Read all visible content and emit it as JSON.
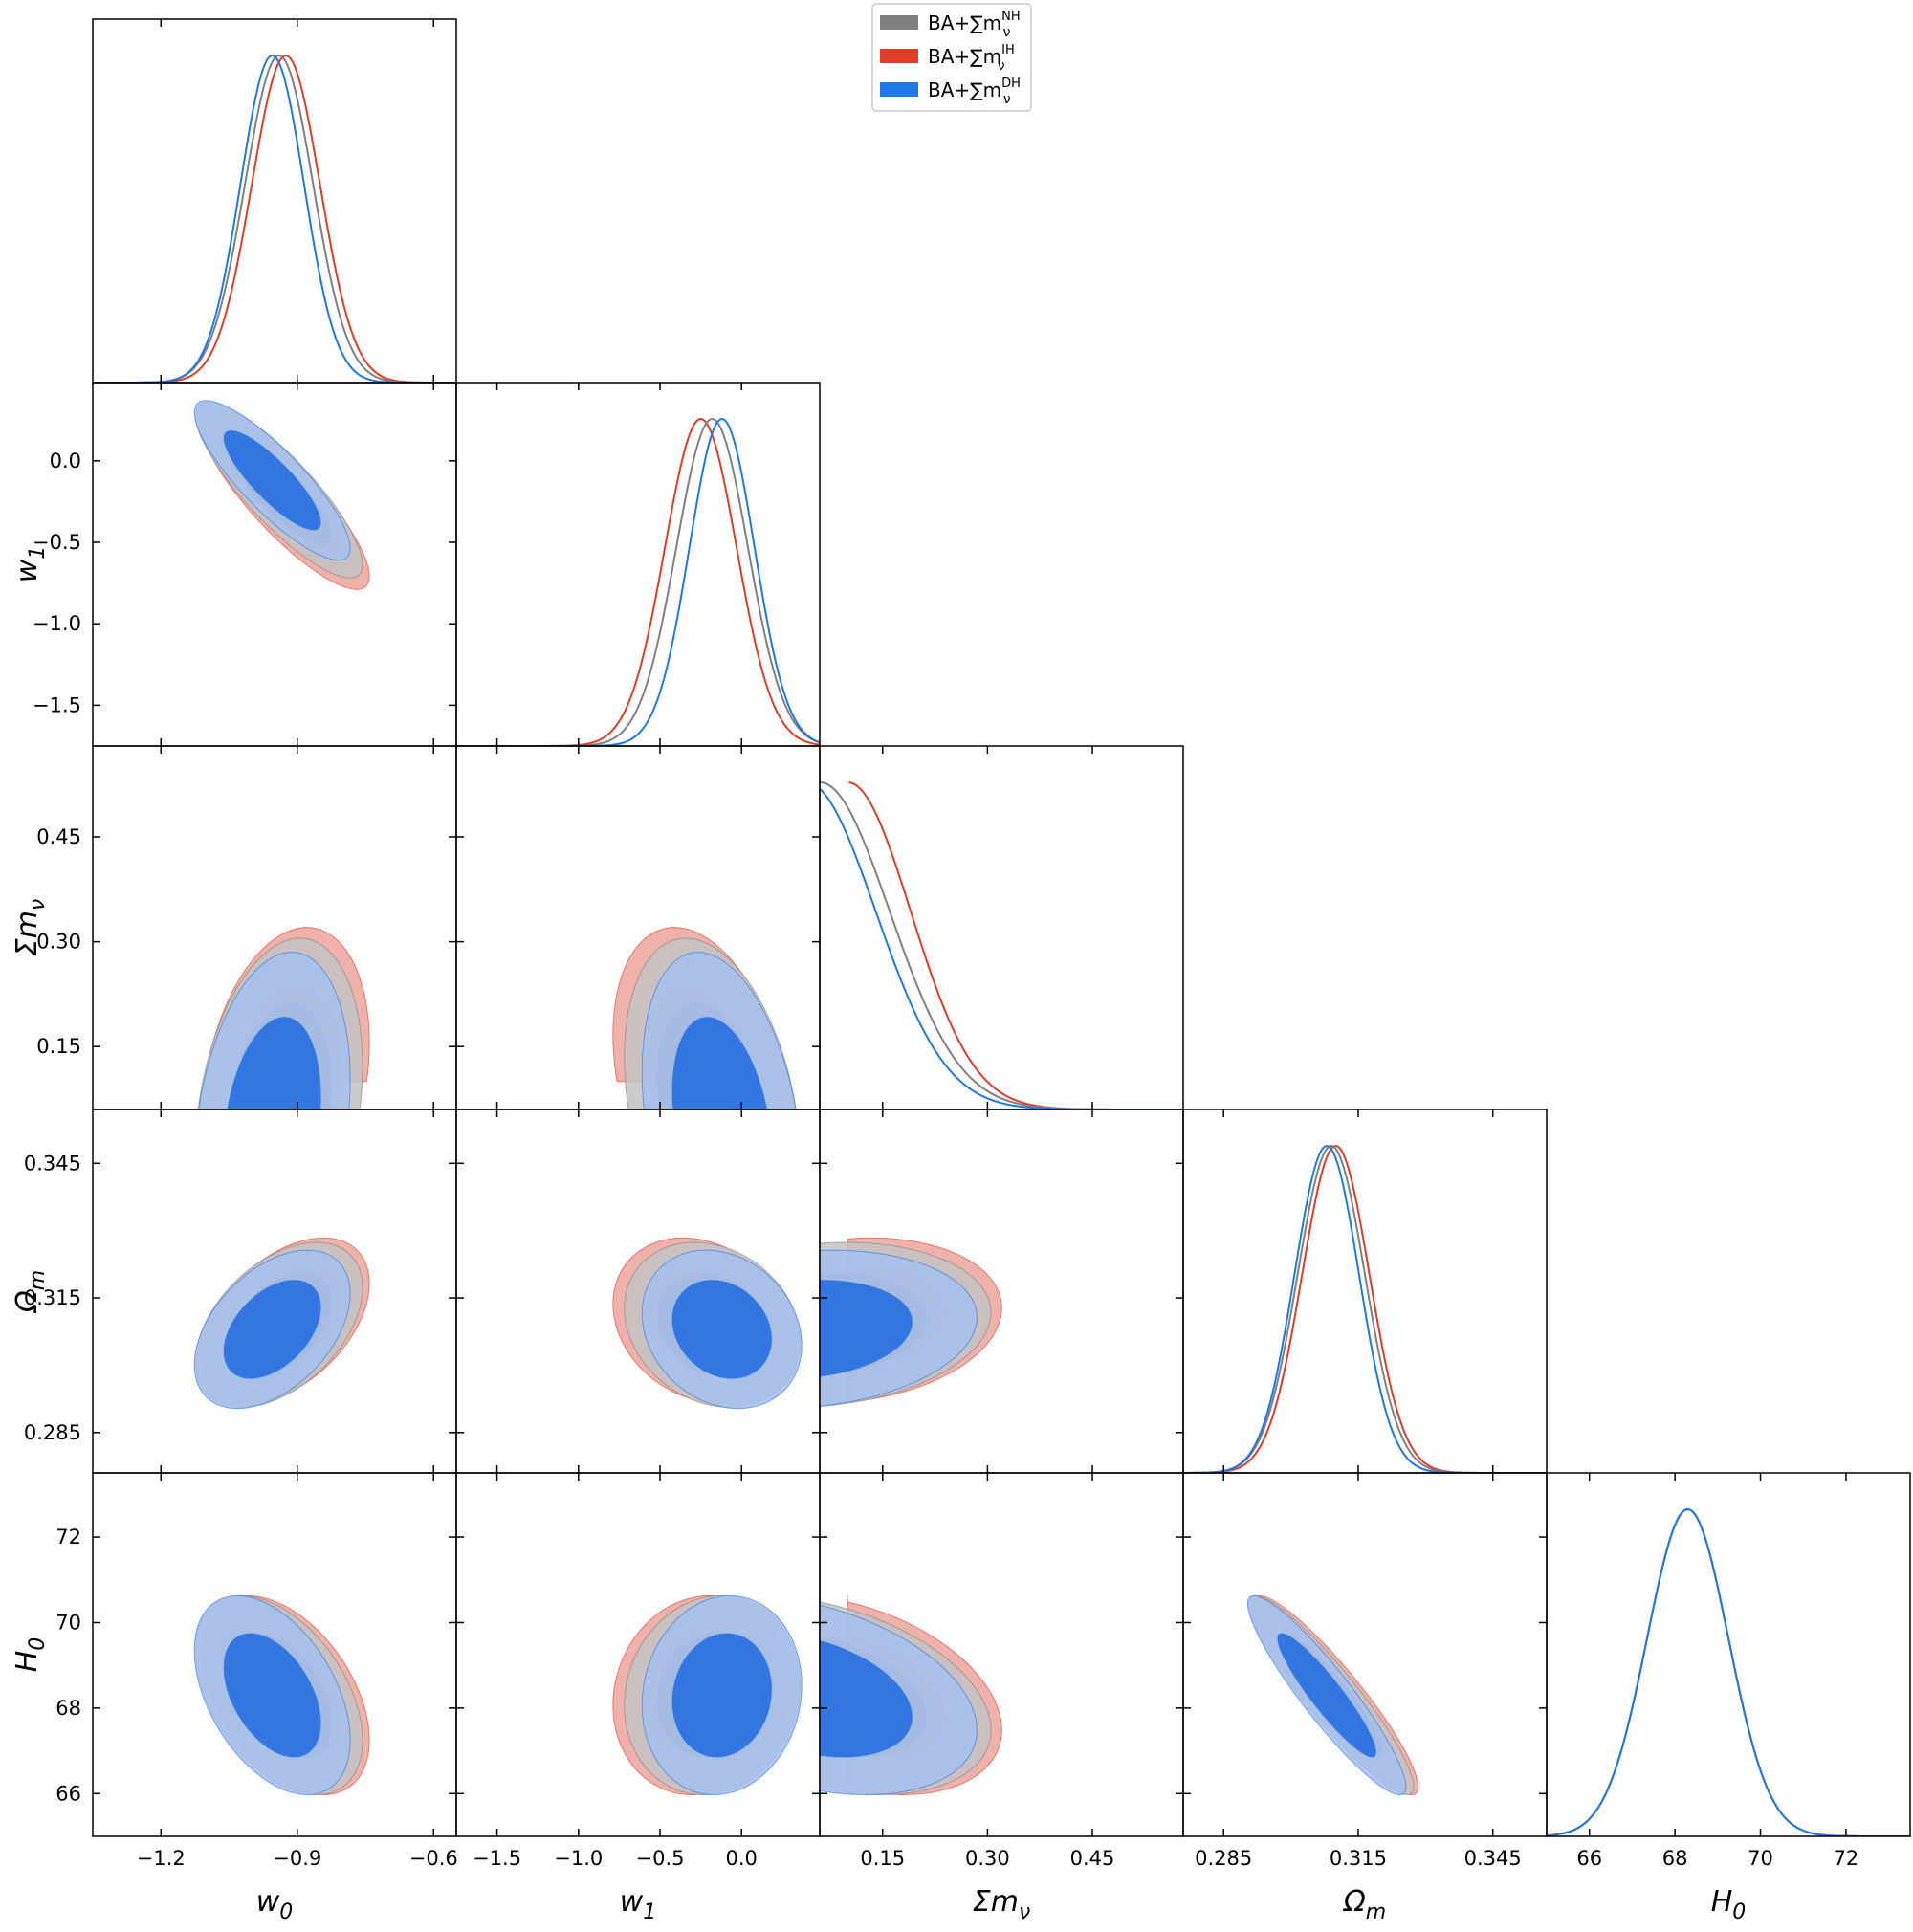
{
  "chart_data": {
    "type": "triangle-corner-plot",
    "parameters": [
      {
        "key": "w0",
        "label": "w",
        "sub": "0",
        "sup": "",
        "range": [
          -1.35,
          -0.55
        ],
        "ticks": [
          -1.2,
          -0.9,
          -0.6
        ],
        "tick_labels": [
          "−1.2",
          "−0.9",
          "−0.6"
        ]
      },
      {
        "key": "w1",
        "label": "w",
        "sub": "1",
        "sup": "",
        "range": [
          -1.75,
          0.48
        ],
        "ticks": [
          -1.5,
          -1.0,
          -0.5,
          0.0
        ],
        "tick_labels": [
          "−1.5",
          "−1.0",
          "−0.5",
          "0.0"
        ]
      },
      {
        "key": "sum_mnu",
        "label": "Σm",
        "sub": "ν",
        "sup": "",
        "range": [
          0.06,
          0.58
        ],
        "ticks": [
          0.15,
          0.3,
          0.45
        ],
        "tick_labels": [
          "0.15",
          "0.30",
          "0.45"
        ]
      },
      {
        "key": "Omega_m",
        "label": "Ω",
        "sub": "m",
        "sup": "",
        "range": [
          0.276,
          0.357
        ],
        "ticks": [
          0.285,
          0.315,
          0.345
        ],
        "tick_labels": [
          "0.285",
          "0.315",
          "0.345"
        ]
      },
      {
        "key": "H0",
        "label": "H",
        "sub": "0",
        "sup": "",
        "range": [
          65.0,
          73.5
        ],
        "ticks": [
          66,
          68,
          70,
          72
        ],
        "tick_labels": [
          "66",
          "68",
          "70",
          "72"
        ]
      }
    ],
    "legend": {
      "placement": "top-center",
      "entries": [
        {
          "text": "BA+∑m",
          "sub": "ν",
          "sup": "NH",
          "color": "#808080"
        },
        {
          "text": "BA+∑m",
          "sub": "ν",
          "sup": "IH",
          "color": "#e03c28"
        },
        {
          "text": "BA+∑m",
          "sub": "ν",
          "sup": "DH",
          "color": "#1e78e8"
        }
      ]
    },
    "series": [
      {
        "key": "NH",
        "line_color": "#808080",
        "fill_outer": "#c2c2c2",
        "fill_inner": "#9a9a9a",
        "mean": [
          -0.94,
          -0.18,
          0.06,
          0.309,
          68.3
        ],
        "sigma": [
          0.075,
          0.22,
          0.1,
          0.0075,
          0.95
        ],
        "corr": [
          [
            1,
            -0.85,
            0.25,
            0.45,
            -0.45
          ],
          [
            -0.85,
            1,
            -0.3,
            -0.2,
            0.1
          ],
          [
            0.25,
            -0.3,
            1,
            0.15,
            -0.35
          ],
          [
            0.45,
            -0.2,
            0.15,
            1,
            -0.92
          ],
          [
            -0.45,
            0.1,
            -0.35,
            -0.92,
            1
          ]
        ]
      },
      {
        "key": "IH",
        "line_color": "#e03c28",
        "fill_outer": "#eca59c",
        "fill_inner": "#e07266",
        "mean": [
          -0.925,
          -0.25,
          0.1,
          0.31,
          68.3
        ],
        "sigma": [
          0.075,
          0.22,
          0.09,
          0.0075,
          0.95
        ],
        "corr": [
          [
            1,
            -0.85,
            0.25,
            0.45,
            -0.45
          ],
          [
            -0.85,
            1,
            -0.3,
            -0.2,
            0.1
          ],
          [
            0.25,
            -0.3,
            1,
            0.15,
            -0.35
          ],
          [
            0.45,
            -0.2,
            0.15,
            1,
            -0.92
          ],
          [
            -0.45,
            0.1,
            -0.35,
            -0.92,
            1
          ]
        ]
      },
      {
        "key": "DH",
        "line_color": "#1e78e8",
        "fill_outer": "#a6c0ec",
        "fill_inner": "#1e6ae0",
        "mean": [
          -0.955,
          -0.12,
          0.04,
          0.308,
          68.3
        ],
        "sigma": [
          0.07,
          0.2,
          0.1,
          0.0072,
          0.95
        ],
        "corr": [
          [
            1,
            -0.85,
            0.25,
            0.45,
            -0.45
          ],
          [
            -0.85,
            1,
            -0.3,
            -0.2,
            0.1
          ],
          [
            0.25,
            -0.3,
            1,
            0.15,
            -0.35
          ],
          [
            0.45,
            -0.2,
            0.15,
            1,
            -0.92
          ],
          [
            -0.45,
            0.1,
            -0.35,
            -0.92,
            1
          ]
        ]
      }
    ],
    "sum_mnu_lower_bounds": {
      "NH": 0.06,
      "IH": 0.1,
      "DH": 0.0
    },
    "contour_levels": [
      "68%",
      "95%"
    ]
  }
}
